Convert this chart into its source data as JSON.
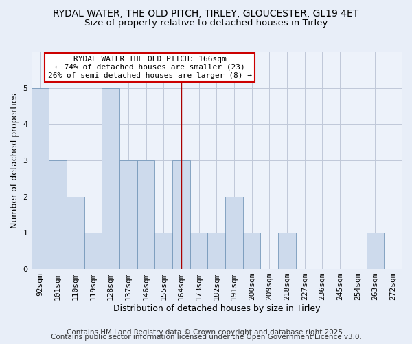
{
  "title": "RYDAL WATER, THE OLD PITCH, TIRLEY, GLOUCESTER, GL19 4ET",
  "subtitle": "Size of property relative to detached houses in Tirley",
  "xlabel": "Distribution of detached houses by size in Tirley",
  "ylabel": "Number of detached properties",
  "categories": [
    "92sqm",
    "101sqm",
    "110sqm",
    "119sqm",
    "128sqm",
    "137sqm",
    "146sqm",
    "155sqm",
    "164sqm",
    "173sqm",
    "182sqm",
    "191sqm",
    "200sqm",
    "209sqm",
    "218sqm",
    "227sqm",
    "236sqm",
    "245sqm",
    "254sqm",
    "263sqm",
    "272sqm"
  ],
  "values": [
    5,
    3,
    2,
    1,
    5,
    3,
    3,
    1,
    3,
    1,
    1,
    2,
    1,
    0,
    1,
    0,
    0,
    0,
    0,
    1,
    0
  ],
  "highlight_index": 8,
  "highlight_label": "RYDAL WATER THE OLD PITCH: 166sqm",
  "annotation_line1": "← 74% of detached houses are smaller (23)",
  "annotation_line2": "26% of semi-detached houses are larger (8) →",
  "bar_color": "#cddaec",
  "bar_edge_color": "#7799bb",
  "highlight_line_color": "#aa0000",
  "annotation_box_edge": "#cc0000",
  "annotation_box_fill": "#ffffff",
  "ylim": [
    0,
    6
  ],
  "yticks": [
    0,
    1,
    2,
    3,
    4,
    5,
    6
  ],
  "footer_line1": "Contains HM Land Registry data © Crown copyright and database right 2025.",
  "footer_line2": "Contains public sector information licensed under the Open Government Licence v3.0.",
  "bg_color": "#e8eef8",
  "plot_bg_color": "#edf2fa",
  "grid_color": "#c0c8d8",
  "title_fontsize": 10,
  "subtitle_fontsize": 9.5,
  "axis_label_fontsize": 9,
  "tick_fontsize": 8,
  "footer_fontsize": 7.5
}
